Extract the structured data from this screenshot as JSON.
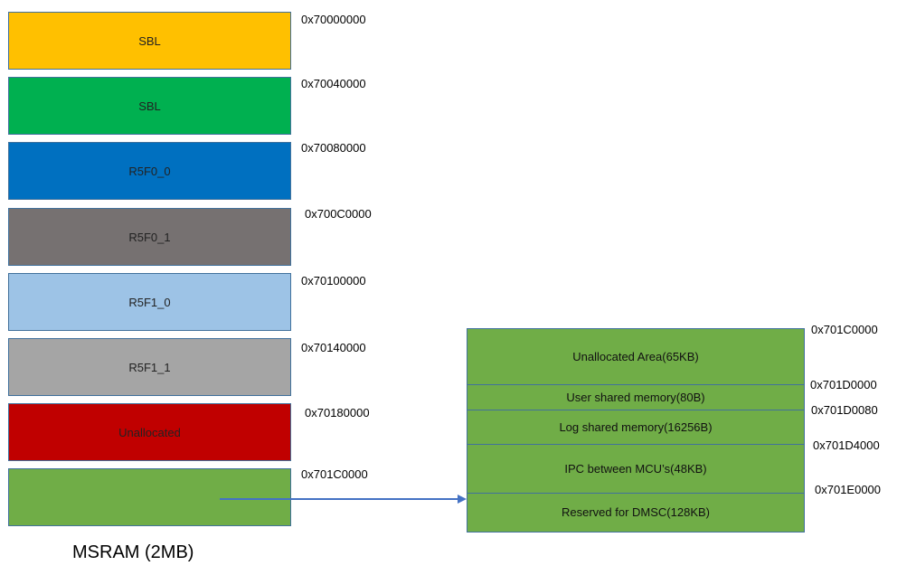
{
  "memory_map": {
    "blocks": [
      {
        "label": "SBL",
        "address": "0x70000000",
        "color": "#ffc000"
      },
      {
        "label": "SBL",
        "address": "0x70040000",
        "color": "#00b050"
      },
      {
        "label": "R5F0_0",
        "address": "0x70080000",
        "color": "#0070c0"
      },
      {
        "label": "R5F0_1",
        "address": "0x700C0000",
        "color": "#767171"
      },
      {
        "label": "R5F1_0",
        "address": "0x70100000",
        "color": "#9dc3e6"
      },
      {
        "label": "R5F1_1",
        "address": "0x70140000",
        "color": "#a5a5a5"
      },
      {
        "label": "Unallocated",
        "address": "0x70180000",
        "color": "#c00000"
      },
      {
        "label": "",
        "address": "0x701C0000",
        "color": "#70ad47"
      }
    ],
    "caption": "MSRAM (2MB)"
  },
  "expanded_region": {
    "color": "#70ad47",
    "rows": [
      {
        "label": "Unallocated Area(65KB)",
        "address": "0x701C0000"
      },
      {
        "label": "User shared memory(80B)",
        "address": "0x701D0000"
      },
      {
        "label": "Log shared memory(16256B)",
        "address": "0x701D0080"
      },
      {
        "label": "IPC between MCU’s(48KB)",
        "address": "0x701D4000"
      },
      {
        "label": "Reserved for DMSC(128KB)",
        "address": "0x701E0000"
      }
    ]
  },
  "arrow_color": "#4472c4"
}
